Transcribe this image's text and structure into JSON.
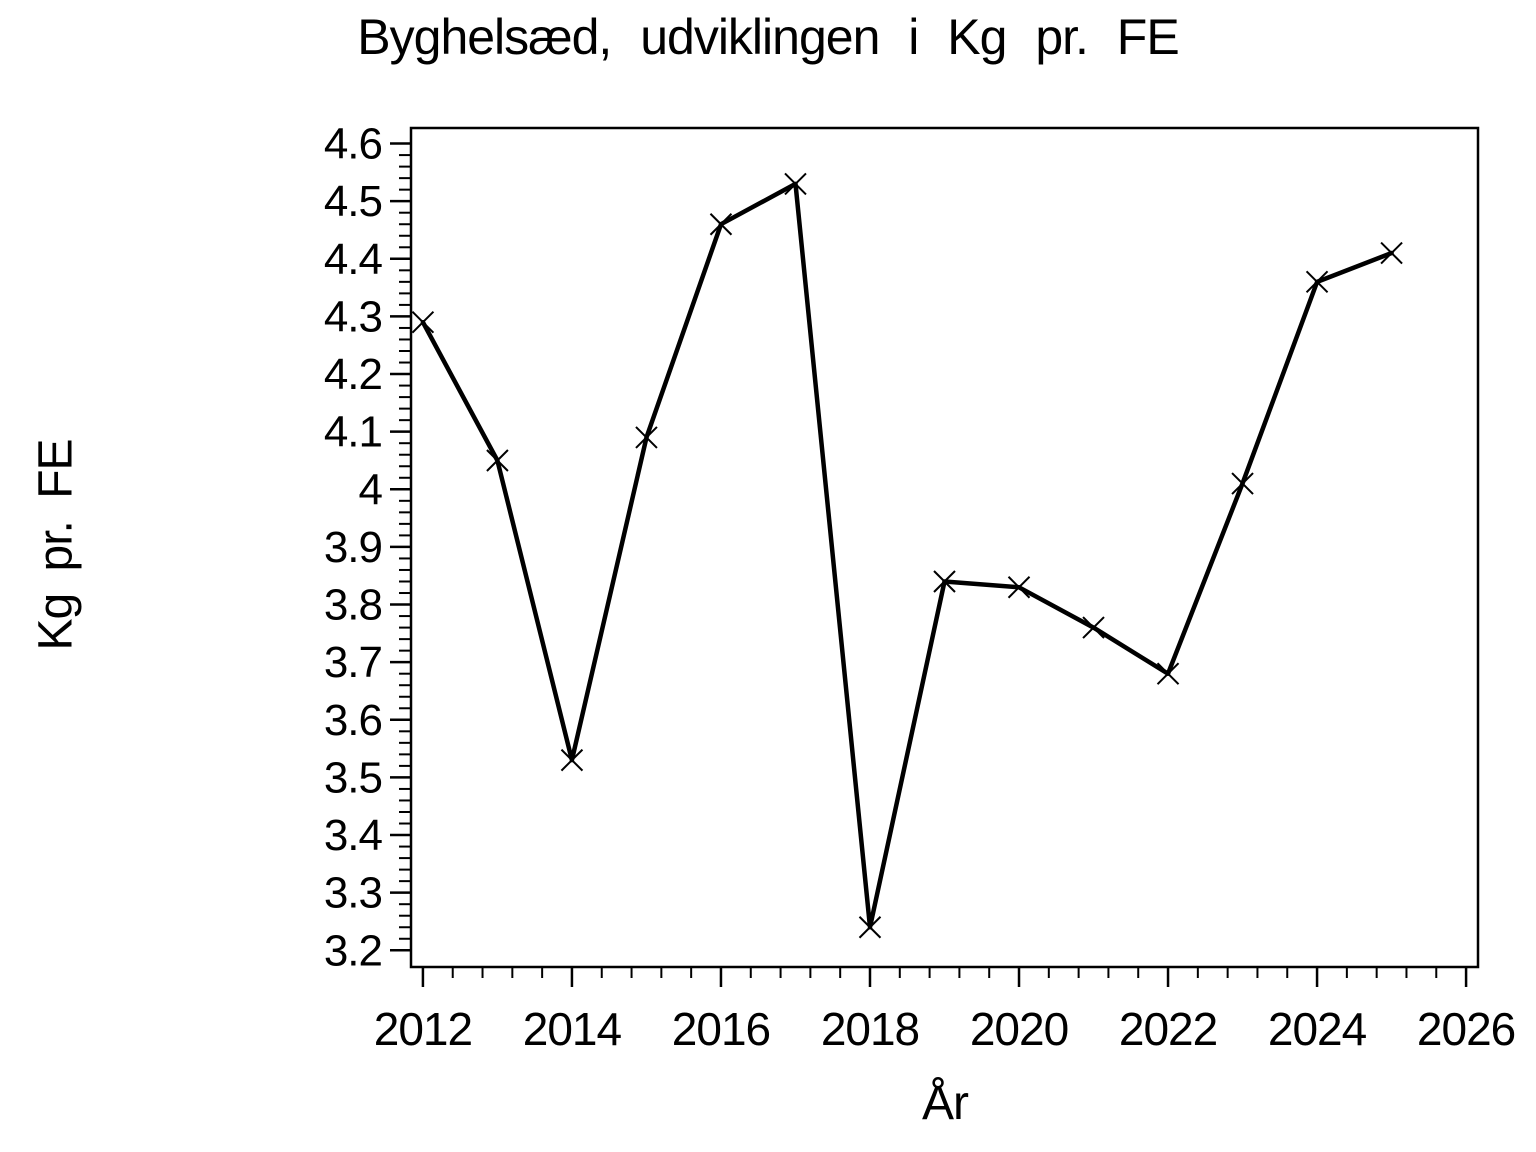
{
  "page": {
    "background_color": "#ffffff",
    "ink_color": "#000000"
  },
  "chart_data": {
    "type": "line",
    "title": "Byghelsæd, udviklingen i Kg pr. FE",
    "xlabel": "År",
    "ylabel": "Kg pr. FE",
    "x": [
      2012,
      2013,
      2014,
      2015,
      2016,
      2017,
      2018,
      2019,
      2020,
      2021,
      2022,
      2023,
      2024,
      2025
    ],
    "series": [
      {
        "name": "Kg pr. FE",
        "values": [
          4.29,
          4.05,
          3.53,
          4.09,
          4.46,
          4.53,
          3.24,
          3.84,
          3.83,
          3.76,
          3.68,
          4.01,
          4.36,
          4.41
        ]
      }
    ],
    "marker": "x",
    "marker_size": 10.5,
    "line_width": 4.5,
    "line_color": "#000000",
    "grid": false,
    "legend": "none",
    "xlim": [
      2011.84,
      2026.16
    ],
    "ylim": [
      3.171,
      4.627
    ],
    "x_major_ticks": [
      2012,
      2014,
      2016,
      2018,
      2020,
      2022,
      2024,
      2026
    ],
    "x_tick_labels": [
      "2012",
      "2014",
      "2016",
      "2018",
      "2020",
      "2022",
      "2024",
      "2026"
    ],
    "x_minor_per_interval": 4,
    "y_major_ticks": [
      3.2,
      3.3,
      3.4,
      3.5,
      3.6,
      3.7,
      3.8,
      3.9,
      4.0,
      4.1,
      4.2,
      4.3,
      4.4,
      4.5,
      4.6
    ],
    "y_tick_labels": [
      "3.2",
      "3.3",
      "3.4",
      "3.5",
      "3.6",
      "3.7",
      "3.8",
      "3.9",
      "4",
      "4.1",
      "4.2",
      "4.3",
      "4.4",
      "4.5",
      "4.6"
    ],
    "y_minor_per_interval": 4
  }
}
